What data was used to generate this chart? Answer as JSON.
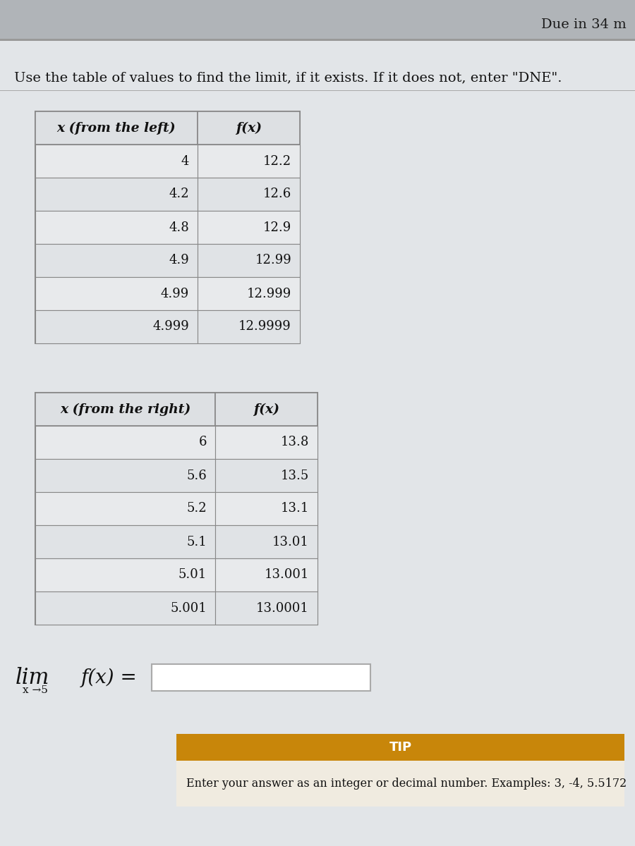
{
  "due_text": "Due in 34 m",
  "instruction": "Use the table of values to find the limit, if it exists. If it does not, enter \"DNE\".",
  "table1_header": [
    "x (from the left)",
    "f(x)"
  ],
  "table1_data": [
    [
      "4",
      "12.2"
    ],
    [
      "4.2",
      "12.6"
    ],
    [
      "4.8",
      "12.9"
    ],
    [
      "4.9",
      "12.99"
    ],
    [
      "4.99",
      "12.999"
    ],
    [
      "4.999",
      "12.9999"
    ]
  ],
  "table2_header": [
    "x (from the right)",
    "f(x)"
  ],
  "table2_data": [
    [
      "6",
      "13.8"
    ],
    [
      "5.6",
      "13.5"
    ],
    [
      "5.2",
      "13.1"
    ],
    [
      "5.1",
      "13.01"
    ],
    [
      "5.01",
      "13.001"
    ],
    [
      "5.001",
      "13.0001"
    ]
  ],
  "tip_header": "TIP",
  "tip_text": "Enter your answer as an integer or decimal number. Examples: 3, -4, 5.5172",
  "bg_top": "#c0c4c8",
  "bg_main": "#d4d8dc",
  "content_bg": "#e2e5e8",
  "table_border": "#888888",
  "table_header_bg": "#dde0e3",
  "table_row_alt1": "#e8eaec",
  "table_row_alt2": "#e0e3e6",
  "tip_header_bg": "#c8860a",
  "tip_body_bg": "#f0ebe0",
  "input_border": "#aaaaaa"
}
